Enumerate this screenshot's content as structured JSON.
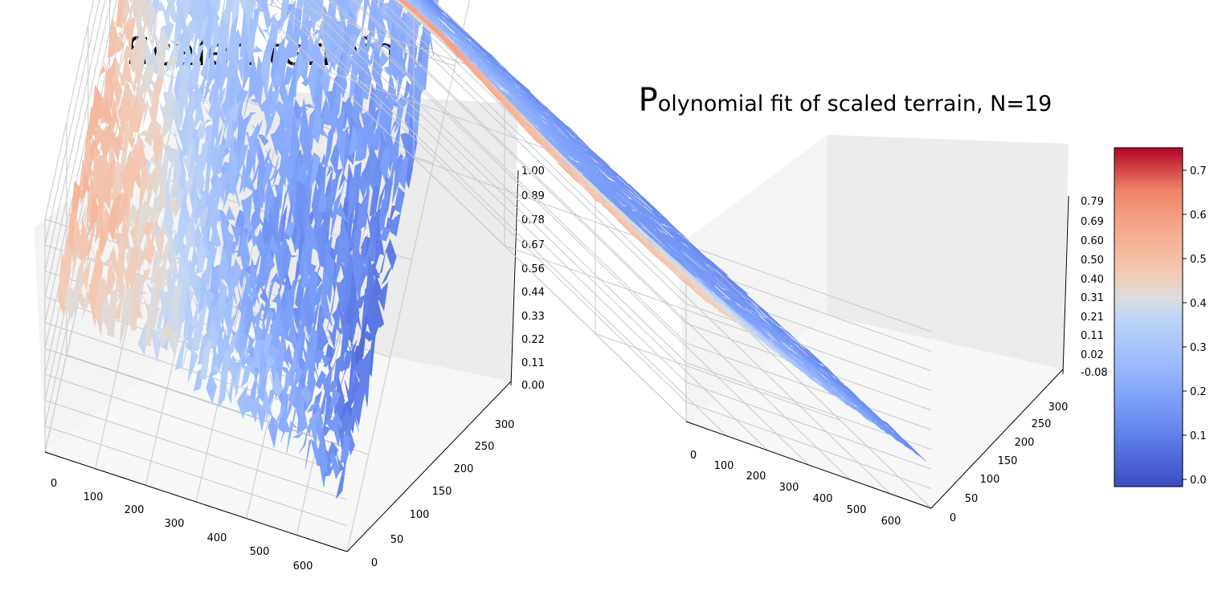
{
  "chart_data": [
    {
      "type": "surface3d",
      "title": "Scaled terrain",
      "colormap": "coolwarm",
      "x_ticks": [
        "0",
        "100",
        "200",
        "300",
        "400",
        "500",
        "600"
      ],
      "y_ticks": [
        "0",
        "50",
        "100",
        "150",
        "200",
        "250",
        "300"
      ],
      "z_ticks": [
        "0.00",
        "0.11",
        "0.22",
        "0.33",
        "0.44",
        "0.56",
        "0.67",
        "0.78",
        "0.89",
        "1.00"
      ],
      "xlim": [
        0,
        640
      ],
      "ylim": [
        0,
        330
      ],
      "zlim": [
        0,
        1
      ]
    },
    {
      "type": "surface3d",
      "title": "Polynomial fit of scaled terrain, N=19",
      "colormap": "coolwarm",
      "x_ticks": [
        "0",
        "100",
        "200",
        "300",
        "400",
        "500",
        "600"
      ],
      "y_ticks": [
        "0",
        "50",
        "100",
        "150",
        "200",
        "250",
        "300"
      ],
      "z_ticks": [
        "-0.08",
        "0.02",
        "0.11",
        "0.21",
        "0.31",
        "0.40",
        "0.50",
        "0.60",
        "0.69",
        "0.79"
      ],
      "xlim": [
        0,
        640
      ],
      "ylim": [
        0,
        330
      ],
      "zlim": [
        -0.08,
        0.79
      ],
      "colorbar": {
        "ticks": [
          "0.0",
          "0.1",
          "0.2",
          "0.3",
          "0.4",
          "0.5",
          "0.6",
          "0.7"
        ],
        "range": [
          -0.02,
          0.75
        ]
      }
    }
  ]
}
